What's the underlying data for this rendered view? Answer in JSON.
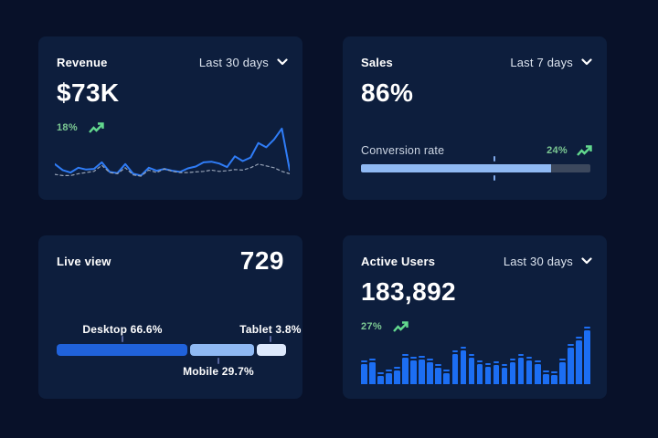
{
  "colors": {
    "page_bg": "#081129",
    "card_bg": "#0d1e3d",
    "title_text": "#ffffff",
    "period_text": "#dde5f0",
    "delta_text": "#7cc993",
    "trend_icon": "#63d98e",
    "metric_label": "#cdd6e4",
    "tick_line": "#56649c"
  },
  "cards": {
    "revenue": {
      "title": "Revenue",
      "period": "Last 30 days",
      "value": "$73K",
      "delta": "18%"
    },
    "sales": {
      "title": "Sales",
      "period": "Last 7 days",
      "value": "86%",
      "metric_label": "Conversion rate",
      "delta": "24%"
    },
    "live_view": {
      "title": "Live view",
      "value": "729"
    },
    "active_users": {
      "title": "Active Users",
      "period": "Last 30 days",
      "value": "183,892",
      "delta": "27%"
    }
  },
  "icons": {
    "dropdown": "chevron-down",
    "delta": "trend-up-arrow"
  },
  "chart_data": [
    {
      "id": "revenue-trend",
      "type": "line",
      "title": "Revenue",
      "axes_hidden": true,
      "ylim": [
        0,
        100
      ],
      "series": [
        {
          "name": "current",
          "style": "solid",
          "color": "#2f7cf6",
          "values": [
            26,
            16,
            12,
            20,
            17,
            18,
            29,
            13,
            11,
            26,
            10,
            7,
            20,
            15,
            18,
            15,
            13,
            19,
            22,
            29,
            30,
            27,
            21,
            39,
            31,
            37,
            61,
            54,
            67,
            85,
            16
          ]
        },
        {
          "name": "previous",
          "style": "dashed",
          "color": "#97a3b7",
          "values": [
            9,
            7,
            7,
            10,
            12,
            14,
            24,
            12,
            10,
            20,
            8,
            6,
            16,
            12,
            18,
            14,
            12,
            12,
            13,
            14,
            16,
            14,
            15,
            17,
            16,
            20,
            26,
            23,
            20,
            14,
            10
          ]
        }
      ]
    },
    {
      "id": "sales-conversion-progress",
      "type": "progress",
      "label": "Conversion rate",
      "value_percent": 86,
      "fill_percent": 83,
      "marker_percent": 58,
      "fill_color": "#8fb9f3",
      "track_color": "#3c485d",
      "marker_color": "#7fa9ea"
    },
    {
      "id": "live-view-device-split",
      "type": "stacked-bar",
      "segments": [
        {
          "name": "Desktop",
          "label": "Desktop 66.6%",
          "percent": 66.6,
          "width_percent": 57.0,
          "color": "#2062da",
          "label_position": "above",
          "anchor_percent": 28.7
        },
        {
          "name": "Mobile",
          "label": "Mobile 29.7%",
          "percent": 29.7,
          "width_percent": 28.3,
          "color": "#8fb9f3",
          "label_position": "below",
          "anchor_percent": 70.5
        },
        {
          "name": "Tablet",
          "label": "Tablet 3.8%",
          "percent": 3.8,
          "width_percent": 12.7,
          "color": "#dde9fc",
          "label_position": "above",
          "anchor_percent": 93.2
        }
      ]
    },
    {
      "id": "active-users-daily",
      "type": "bar",
      "color": "#1c6ef3",
      "ylim": [
        0,
        100
      ],
      "values": [
        38,
        41,
        15,
        21,
        26,
        49,
        44,
        45,
        41,
        31,
        21,
        56,
        62,
        49,
        38,
        33,
        36,
        30,
        41,
        49,
        44,
        37,
        19,
        17,
        41,
        67,
        82,
        100
      ]
    }
  ]
}
